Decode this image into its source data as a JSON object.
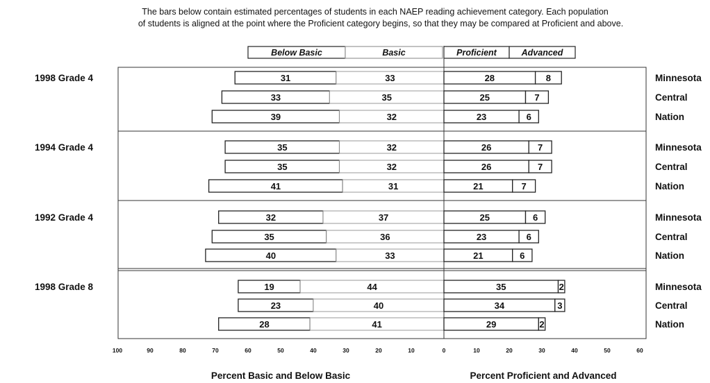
{
  "description": [
    "The bars below contain estimated percentages of students in each NAEP reading achievement category.  Each population",
    "of students is aligned at the point where the Proficient category begins, so that they may be compared at Proficient and above."
  ],
  "chart_data": {
    "type": "bar",
    "orientation": "horizontal-diverging",
    "legend": [
      "Below Basic",
      "Basic",
      "Proficient",
      "Advanced"
    ],
    "legend_placement": "top-center",
    "xlabel_left": "Percent Basic and Below Basic",
    "xlabel_right": "Percent Proficient and Advanced",
    "xlim_left": [
      100,
      0
    ],
    "xlim_right": [
      0,
      60
    ],
    "ticks_left": [
      "100",
      "90",
      "80",
      "70",
      "60",
      "50",
      "40",
      "30",
      "20",
      "10"
    ],
    "ticks_right": [
      "0",
      "10",
      "20",
      "30",
      "40",
      "50",
      "60"
    ],
    "colors": {
      "bar_fill": "#ffffff",
      "bar_stroke": "#222222",
      "basic_stroke": "#999999",
      "frame": "#333333"
    },
    "groups": [
      {
        "label": "1998 Grade 4",
        "rows": [
          {
            "name": "Minnesota",
            "below_basic": 31,
            "basic": 33,
            "proficient": 28,
            "advanced": 8
          },
          {
            "name": "Central",
            "below_basic": 33,
            "basic": 35,
            "proficient": 25,
            "advanced": 7
          },
          {
            "name": "Nation",
            "below_basic": 39,
            "basic": 32,
            "proficient": 23,
            "advanced": 6
          }
        ]
      },
      {
        "label": "1994 Grade 4",
        "rows": [
          {
            "name": "Minnesota",
            "below_basic": 35,
            "basic": 32,
            "proficient": 26,
            "advanced": 7
          },
          {
            "name": "Central",
            "below_basic": 35,
            "basic": 32,
            "proficient": 26,
            "advanced": 7
          },
          {
            "name": "Nation",
            "below_basic": 41,
            "basic": 31,
            "proficient": 21,
            "advanced": 7
          }
        ]
      },
      {
        "label": "1992 Grade 4",
        "rows": [
          {
            "name": "Minnesota",
            "below_basic": 32,
            "basic": 37,
            "proficient": 25,
            "advanced": 6
          },
          {
            "name": "Central",
            "below_basic": 35,
            "basic": 36,
            "proficient": 23,
            "advanced": 6
          },
          {
            "name": "Nation",
            "below_basic": 40,
            "basic": 33,
            "proficient": 21,
            "advanced": 6
          }
        ]
      },
      {
        "label": "1998 Grade 8",
        "rows": [
          {
            "name": "Minnesota",
            "below_basic": 19,
            "basic": 44,
            "proficient": 35,
            "advanced": 2
          },
          {
            "name": "Central",
            "below_basic": 23,
            "basic": 40,
            "proficient": 34,
            "advanced": 3
          },
          {
            "name": "Nation",
            "below_basic": 28,
            "basic": 41,
            "proficient": 29,
            "advanced": 2
          }
        ]
      }
    ]
  }
}
